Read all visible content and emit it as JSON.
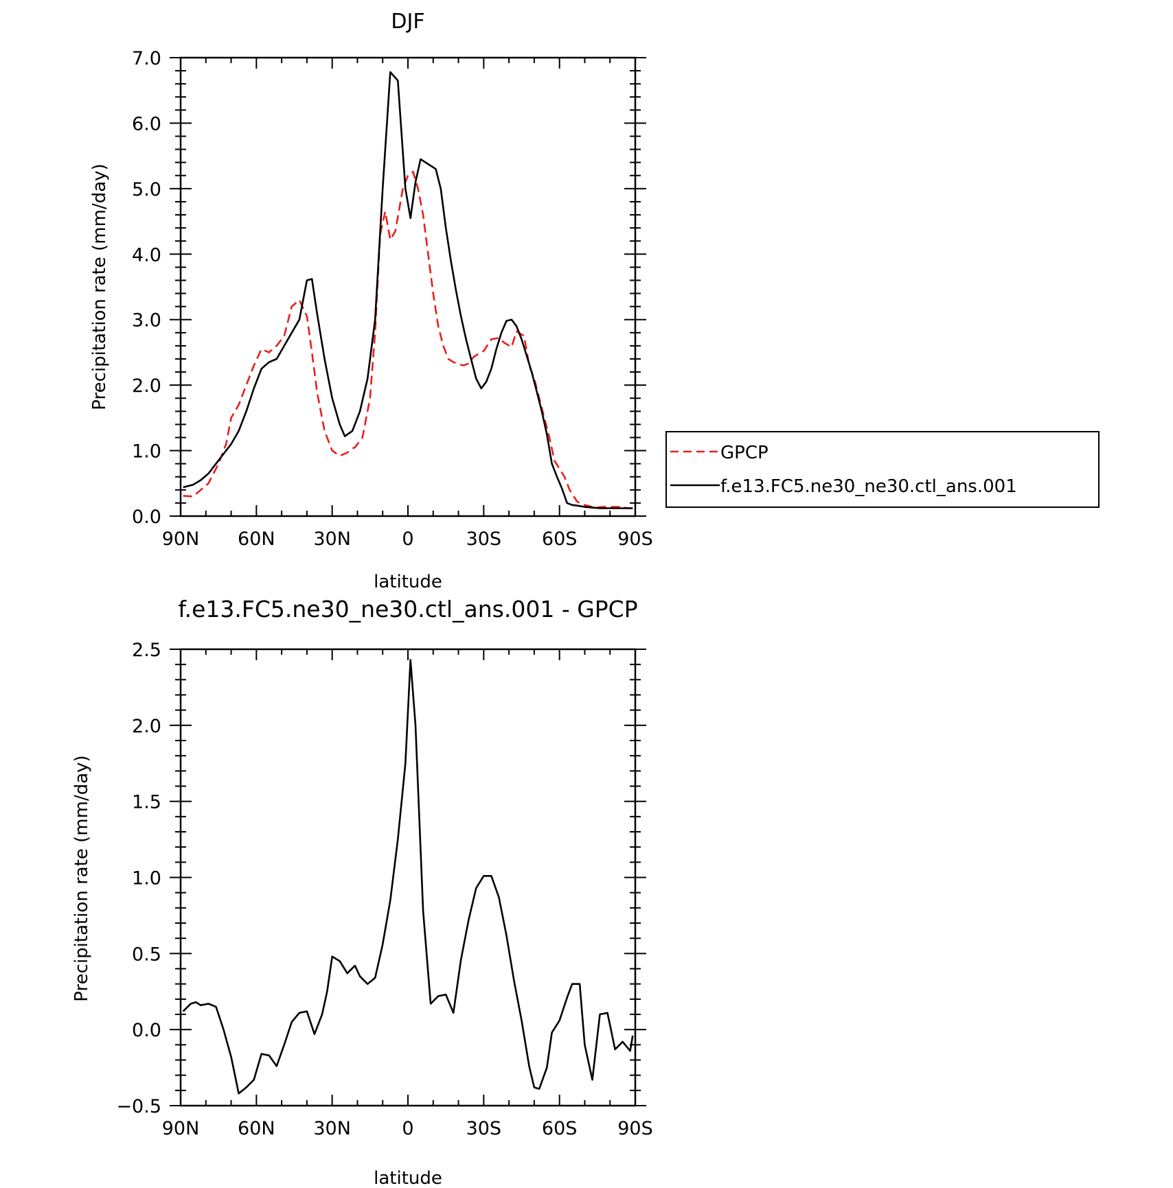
{
  "chart_data": [
    {
      "type": "line",
      "title": "DJF",
      "xlabel": "latitude",
      "ylabel": "Precipitation rate (mm/day)",
      "x_ticks": [
        "90N",
        "60N",
        "30N",
        "0",
        "30S",
        "60S",
        "90S"
      ],
      "y_ticks": [
        "0.0",
        "1.0",
        "2.0",
        "3.0",
        "4.0",
        "5.0",
        "6.0",
        "7.0"
      ],
      "xlim": [
        90,
        -90
      ],
      "ylim": [
        0,
        7
      ],
      "x_units": "degrees latitude (north positive)",
      "legend": {
        "placement": "right",
        "entries": [
          "GPCP",
          "f.e13.FC5.ne30_ne30.ctl_ans.001"
        ]
      },
      "series": [
        {
          "name": "GPCP",
          "color": "#e8201c",
          "dash": "dashed",
          "x": [
            89,
            85,
            82,
            79,
            75,
            72,
            70,
            67,
            64,
            61,
            58,
            55,
            52,
            49,
            46,
            43,
            40,
            38,
            36,
            33,
            30,
            27,
            24,
            22,
            21,
            18,
            15,
            13,
            11,
            9,
            7,
            5,
            2,
            0,
            -2,
            -4,
            -6,
            -8,
            -10,
            -12,
            -14,
            -16,
            -18,
            -20,
            -22,
            -24,
            -26,
            -28,
            -30,
            -33,
            -36,
            -38,
            -41,
            -43,
            -46,
            -48,
            -50,
            -52,
            -54,
            -56,
            -58,
            -60,
            -62,
            -64,
            -67,
            -69,
            -71,
            -74,
            -77,
            -80,
            -82,
            -85,
            -87,
            -89
          ],
          "y": [
            0.31,
            0.3,
            0.4,
            0.5,
            0.8,
            1.1,
            1.5,
            1.7,
            2.0,
            2.3,
            2.55,
            2.5,
            2.6,
            2.75,
            3.2,
            3.3,
            3.05,
            2.5,
            1.9,
            1.3,
            1.0,
            0.92,
            0.97,
            1.03,
            1.05,
            1.2,
            1.8,
            2.8,
            4.3,
            4.65,
            4.22,
            4.35,
            5.0,
            5.2,
            5.26,
            5.0,
            4.6,
            4.0,
            3.4,
            2.9,
            2.6,
            2.4,
            2.35,
            2.32,
            2.3,
            2.33,
            2.43,
            2.48,
            2.52,
            2.7,
            2.72,
            2.65,
            2.58,
            2.82,
            2.75,
            2.3,
            2.1,
            1.8,
            1.5,
            1.2,
            0.85,
            0.72,
            0.6,
            0.4,
            0.22,
            0.18,
            0.16,
            0.13,
            0.14,
            0.14,
            0.14,
            0.14,
            0.12,
            0.12
          ]
        },
        {
          "name": "f.e13.FC5.ne30_ne30.ctl_ans.001",
          "color": "#000000",
          "dash": "solid",
          "x": [
            89,
            85,
            82,
            79,
            76,
            73,
            70,
            67,
            64,
            61,
            58,
            55,
            52,
            49,
            46,
            43,
            40,
            38,
            36,
            33,
            30,
            27,
            25,
            22,
            19,
            16,
            13,
            10,
            7,
            4,
            1,
            -1,
            -3,
            -5,
            -7,
            -9,
            -11,
            -13,
            -15,
            -17,
            -19,
            -21,
            -23,
            -25,
            -27,
            -29,
            -31,
            -33,
            -35,
            -37,
            -39,
            -41,
            -43,
            -45,
            -47,
            -49,
            -51,
            -53,
            -55,
            -57,
            -59,
            -61,
            -63,
            -65,
            -67,
            -70,
            -73,
            -76,
            -79,
            -82,
            -85,
            -88,
            -89
          ],
          "y": [
            0.44,
            0.48,
            0.55,
            0.65,
            0.8,
            0.95,
            1.1,
            1.3,
            1.6,
            1.95,
            2.25,
            2.35,
            2.4,
            2.6,
            2.8,
            3.0,
            3.6,
            3.62,
            3.1,
            2.4,
            1.8,
            1.4,
            1.22,
            1.3,
            1.6,
            2.1,
            3.0,
            5.0,
            6.78,
            6.65,
            5.0,
            4.55,
            5.1,
            5.45,
            5.4,
            5.35,
            5.3,
            5.0,
            4.4,
            3.9,
            3.45,
            3.05,
            2.7,
            2.4,
            2.1,
            1.95,
            2.05,
            2.25,
            2.55,
            2.8,
            2.98,
            3.0,
            2.9,
            2.7,
            2.45,
            2.2,
            1.9,
            1.6,
            1.25,
            0.8,
            0.6,
            0.42,
            0.2,
            0.17,
            0.16,
            0.14,
            0.13,
            0.12,
            0.12,
            0.12,
            0.12,
            0.12,
            0.12
          ]
        }
      ]
    },
    {
      "type": "line",
      "title": "f.e13.FC5.ne30_ne30.ctl_ans.001 - GPCP",
      "xlabel": "latitude",
      "ylabel": "Precipitation rate (mm/day)",
      "x_ticks": [
        "90N",
        "60N",
        "30N",
        "0",
        "30S",
        "60S",
        "90S"
      ],
      "y_ticks": [
        "-0.5",
        "0.0",
        "0.5",
        "1.0",
        "1.5",
        "2.0",
        "2.5"
      ],
      "xlim": [
        90,
        -90
      ],
      "ylim": [
        -0.5,
        2.5
      ],
      "series": [
        {
          "color": "#000000",
          "dash": "solid",
          "x": [
            89,
            86,
            84,
            82,
            79,
            76,
            73,
            70,
            67,
            64,
            61,
            58,
            55,
            52,
            49,
            46,
            43,
            40,
            37,
            34,
            32,
            30,
            27,
            24,
            21,
            19,
            16,
            13,
            10,
            7,
            4,
            1,
            -1,
            -3,
            -6,
            -9,
            -12,
            -15,
            -18,
            -21,
            -24,
            -27,
            -30,
            -33,
            -36,
            -39,
            -42,
            -45,
            -48,
            -50,
            -52,
            -55,
            -57,
            -60,
            -63,
            -65,
            -68,
            -70,
            -73,
            -76,
            -79,
            -82,
            -85,
            -88,
            -89
          ],
          "y": [
            0.12,
            0.17,
            0.18,
            0.16,
            0.17,
            0.15,
            0.0,
            -0.18,
            -0.42,
            -0.38,
            -0.33,
            -0.16,
            -0.17,
            -0.24,
            -0.1,
            0.05,
            0.11,
            0.12,
            -0.03,
            0.1,
            0.25,
            0.48,
            0.45,
            0.37,
            0.42,
            0.35,
            0.3,
            0.34,
            0.56,
            0.85,
            1.25,
            1.75,
            2.43,
            2.0,
            0.78,
            0.17,
            0.22,
            0.23,
            0.11,
            0.46,
            0.72,
            0.93,
            1.01,
            1.01,
            0.87,
            0.62,
            0.32,
            0.06,
            -0.24,
            -0.38,
            -0.39,
            -0.25,
            -0.02,
            0.06,
            0.21,
            0.3,
            0.3,
            -0.1,
            -0.33,
            0.1,
            0.11,
            -0.13,
            -0.08,
            -0.14,
            -0.04
          ]
        }
      ]
    }
  ]
}
